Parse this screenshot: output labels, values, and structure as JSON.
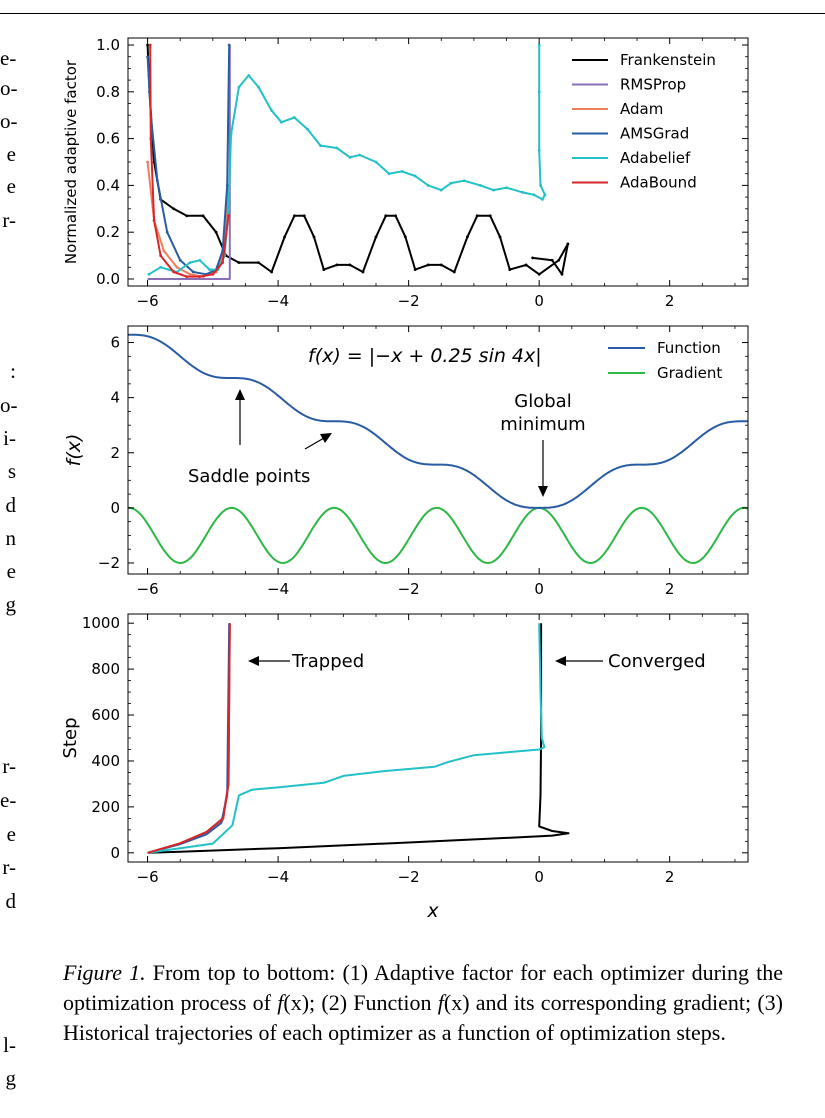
{
  "left_margin_fragments": {
    "top": [
      "e-",
      "o-",
      "o-",
      "e",
      "e",
      "r-"
    ],
    "middle": [
      ":",
      "o-",
      "i-",
      "s",
      "d",
      "n",
      "e",
      "g"
    ],
    "bottom": [
      "r-",
      "e-",
      "e",
      "r-",
      "d"
    ],
    "last": [
      "l-",
      "g"
    ]
  },
  "chart_data": [
    {
      "type": "line",
      "id": "adaptive-factor",
      "ylabel": "Normalized  adaptive  factor",
      "xlabel": "",
      "xlim": [
        -6.3,
        3.2
      ],
      "ylim": [
        -0.03,
        1.03
      ],
      "xticks": [
        -6,
        -4,
        -2,
        0,
        2
      ],
      "xtick_labels": [
        "−6",
        "−4",
        "−2",
        "0",
        "2"
      ],
      "yticks": [
        0.0,
        0.2,
        0.4,
        0.6,
        0.8,
        1.0
      ],
      "ytick_labels": [
        "0.0",
        "0.2",
        "0.4",
        "0.6",
        "0.8",
        "1.0"
      ],
      "legend_position": "top-right",
      "series": [
        {
          "name": "Frankenstein",
          "color": "#000000",
          "points": [
            [
              -6.0,
              1.0
            ],
            [
              -5.97,
              0.8
            ],
            [
              -5.9,
              0.5
            ],
            [
              -5.8,
              0.34
            ],
            [
              -5.6,
              0.3
            ],
            [
              -5.4,
              0.27
            ],
            [
              -5.15,
              0.27
            ],
            [
              -4.95,
              0.2
            ],
            [
              -4.8,
              0.1
            ],
            [
              -4.6,
              0.07
            ],
            [
              -4.3,
              0.07
            ],
            [
              -4.1,
              0.03
            ],
            [
              -3.9,
              0.18
            ],
            [
              -3.75,
              0.27
            ],
            [
              -3.6,
              0.27
            ],
            [
              -3.45,
              0.18
            ],
            [
              -3.3,
              0.04
            ],
            [
              -3.1,
              0.06
            ],
            [
              -2.9,
              0.06
            ],
            [
              -2.7,
              0.03
            ],
            [
              -2.5,
              0.18
            ],
            [
              -2.35,
              0.27
            ],
            [
              -2.2,
              0.27
            ],
            [
              -2.05,
              0.18
            ],
            [
              -1.9,
              0.04
            ],
            [
              -1.7,
              0.06
            ],
            [
              -1.5,
              0.06
            ],
            [
              -1.3,
              0.03
            ],
            [
              -1.1,
              0.18
            ],
            [
              -0.95,
              0.27
            ],
            [
              -0.75,
              0.27
            ],
            [
              -0.6,
              0.18
            ],
            [
              -0.45,
              0.04
            ],
            [
              -0.2,
              0.06
            ],
            [
              0.0,
              0.02
            ],
            [
              0.3,
              0.08
            ],
            [
              0.44,
              0.15
            ],
            [
              0.35,
              0.02
            ],
            [
              0.2,
              0.08
            ],
            [
              -0.1,
              0.09
            ]
          ]
        },
        {
          "name": "RMSProp",
          "color": "#8a6fb6",
          "points": [
            [
              -6.0,
              0.0
            ],
            [
              -4.74,
              0.0
            ],
            [
              -4.74,
              1.0
            ]
          ]
        },
        {
          "name": "Adam",
          "color": "#ef7d5c",
          "points": [
            [
              -6.0,
              0.5
            ],
            [
              -5.9,
              0.25
            ],
            [
              -5.75,
              0.12
            ],
            [
              -5.55,
              0.05
            ],
            [
              -5.35,
              0.02
            ],
            [
              -5.15,
              0.01
            ],
            [
              -4.95,
              0.03
            ],
            [
              -4.82,
              0.12
            ],
            [
              -4.76,
              0.4
            ]
          ]
        },
        {
          "name": "AMSGrad",
          "color": "#2a5ca3",
          "points": [
            [
              -6.0,
              0.95
            ],
            [
              -5.95,
              0.7
            ],
            [
              -5.85,
              0.42
            ],
            [
              -5.7,
              0.2
            ],
            [
              -5.5,
              0.08
            ],
            [
              -5.3,
              0.03
            ],
            [
              -5.1,
              0.02
            ],
            [
              -4.95,
              0.04
            ],
            [
              -4.85,
              0.12
            ],
            [
              -4.78,
              0.4
            ],
            [
              -4.75,
              1.0
            ]
          ]
        },
        {
          "name": "Adabelief",
          "color": "#22c1c7",
          "points": [
            [
              -5.98,
              0.02
            ],
            [
              -5.8,
              0.05
            ],
            [
              -5.55,
              0.03
            ],
            [
              -5.35,
              0.07
            ],
            [
              -5.2,
              0.08
            ],
            [
              -5.05,
              0.04
            ],
            [
              -4.92,
              0.04
            ],
            [
              -4.82,
              0.1
            ],
            [
              -4.76,
              0.3
            ],
            [
              -4.72,
              0.62
            ],
            [
              -4.6,
              0.82
            ],
            [
              -4.45,
              0.87
            ],
            [
              -4.3,
              0.82
            ],
            [
              -4.1,
              0.72
            ],
            [
              -3.95,
              0.67
            ],
            [
              -3.75,
              0.69
            ],
            [
              -3.55,
              0.64
            ],
            [
              -3.35,
              0.57
            ],
            [
              -3.1,
              0.56
            ],
            [
              -2.9,
              0.52
            ],
            [
              -2.75,
              0.53
            ],
            [
              -2.5,
              0.5
            ],
            [
              -2.3,
              0.45
            ],
            [
              -2.1,
              0.46
            ],
            [
              -1.9,
              0.44
            ],
            [
              -1.7,
              0.4
            ],
            [
              -1.5,
              0.38
            ],
            [
              -1.35,
              0.41
            ],
            [
              -1.15,
              0.42
            ],
            [
              -0.9,
              0.4
            ],
            [
              -0.7,
              0.38
            ],
            [
              -0.5,
              0.39
            ],
            [
              -0.25,
              0.37
            ],
            [
              -0.08,
              0.36
            ],
            [
              0.05,
              0.34
            ],
            [
              0.09,
              0.36
            ],
            [
              0.02,
              0.4
            ],
            [
              0.0,
              0.55
            ],
            [
              0.0,
              0.8
            ],
            [
              0.0,
              1.0
            ]
          ]
        },
        {
          "name": "AdaBound",
          "color": "#d8262a",
          "points": [
            [
              -5.96,
              1.0
            ],
            [
              -5.95,
              0.6
            ],
            [
              -5.9,
              0.25
            ],
            [
              -5.8,
              0.1
            ],
            [
              -5.6,
              0.03
            ],
            [
              -5.4,
              0.01
            ],
            [
              -5.2,
              0.01
            ],
            [
              -5.0,
              0.02
            ],
            [
              -4.85,
              0.07
            ],
            [
              -4.76,
              0.27
            ]
          ]
        }
      ]
    },
    {
      "type": "line",
      "id": "function-gradient",
      "ylabel": "f(x)",
      "xlabel": "",
      "xlim": [
        -6.3,
        3.2
      ],
      "ylim": [
        -2.4,
        6.6
      ],
      "xticks": [
        -6,
        -4,
        -2,
        0,
        2
      ],
      "xtick_labels": [
        "−6",
        "−4",
        "−2",
        "0",
        "2"
      ],
      "yticks": [
        -2,
        0,
        2,
        4,
        6
      ],
      "ytick_labels": [
        "−2",
        "0",
        "2",
        "4",
        "6"
      ],
      "legend_position": "top-right",
      "equation": "f(x) = |−x + 0.25 sin 4x|",
      "annotations": {
        "saddle": "Saddle points",
        "global_line1": "Global",
        "global_line2": "minimum"
      },
      "series": [
        {
          "name": "Function",
          "color": "#2a5ca3",
          "function": "abs(-x + 0.25*sin(4*x))"
        },
        {
          "name": "Gradient",
          "color": "#2db845",
          "function": "-1 + cos(4*x) (derivative of -x + 0.25 sin 4x)"
        }
      ]
    },
    {
      "type": "line",
      "id": "trajectories",
      "ylabel": "Step",
      "xlabel": "x",
      "xlim": [
        -6.3,
        3.2
      ],
      "ylim": [
        -40,
        1040
      ],
      "xticks": [
        -6,
        -4,
        -2,
        0,
        2
      ],
      "xtick_labels": [
        "−6",
        "−4",
        "−2",
        "0",
        "2"
      ],
      "yticks": [
        0,
        200,
        400,
        600,
        800,
        1000
      ],
      "ytick_labels": [
        "0",
        "200",
        "400",
        "600",
        "800",
        "1000"
      ],
      "annotations": {
        "trapped": "Trapped",
        "converged": "Converged"
      },
      "series": [
        {
          "name": "Frankenstein",
          "color": "#000000",
          "points": [
            [
              -6.0,
              0
            ],
            [
              -5.5,
              5
            ],
            [
              -4.0,
              20
            ],
            [
              -2.0,
              45
            ],
            [
              -0.5,
              65
            ],
            [
              0.2,
              75
            ],
            [
              0.45,
              85
            ],
            [
              0.2,
              95
            ],
            [
              0.0,
              115
            ],
            [
              0.02,
              250
            ],
            [
              0.03,
              500
            ],
            [
              0.03,
              1000
            ]
          ]
        },
        {
          "name": "RMSProp",
          "color": "#8a6fb6",
          "points": [
            [
              -6.0,
              0
            ],
            [
              -5.5,
              40
            ],
            [
              -5.1,
              90
            ],
            [
              -4.85,
              150
            ],
            [
              -4.76,
              300
            ],
            [
              -4.74,
              1000
            ]
          ]
        },
        {
          "name": "Adam",
          "color": "#ef7d5c",
          "points": [
            [
              -6.0,
              0
            ],
            [
              -5.5,
              40
            ],
            [
              -5.1,
              85
            ],
            [
              -4.85,
              140
            ],
            [
              -4.77,
              280
            ],
            [
              -4.74,
              1000
            ]
          ]
        },
        {
          "name": "AMSGrad",
          "color": "#2a5ca3",
          "points": [
            [
              -6.0,
              0
            ],
            [
              -5.5,
              38
            ],
            [
              -5.1,
              80
            ],
            [
              -4.87,
              130
            ],
            [
              -4.78,
              250
            ],
            [
              -4.75,
              1000
            ]
          ]
        },
        {
          "name": "Adabelief",
          "color": "#22c1c7",
          "points": [
            [
              -6.0,
              0
            ],
            [
              -5.5,
              20
            ],
            [
              -5.0,
              40
            ],
            [
              -4.7,
              120
            ],
            [
              -4.6,
              250
            ],
            [
              -4.4,
              275
            ],
            [
              -4.0,
              285
            ],
            [
              -3.3,
              305
            ],
            [
              -3.0,
              335
            ],
            [
              -2.4,
              355
            ],
            [
              -1.6,
              375
            ],
            [
              -1.4,
              395
            ],
            [
              -1.0,
              425
            ],
            [
              -0.4,
              440
            ],
            [
              0.0,
              450
            ],
            [
              0.08,
              460
            ],
            [
              0.04,
              500
            ],
            [
              0.02,
              700
            ],
            [
              0.0,
              1000
            ]
          ]
        },
        {
          "name": "AdaBound",
          "color": "#d8262a",
          "points": [
            [
              -6.0,
              0
            ],
            [
              -5.5,
              42
            ],
            [
              -5.1,
              90
            ],
            [
              -4.84,
              150
            ],
            [
              -4.76,
              300
            ],
            [
              -4.74,
              1000
            ]
          ]
        }
      ]
    }
  ],
  "caption": {
    "lead": "Figure 1.",
    "part1": " From top to bottom: (1) Adaptive factor for each optimizer during the optimization process of ",
    "fx1": "f",
    "part2": "(x); (2) Function ",
    "fx2": "f",
    "part3": "(x) and its corresponding gradient; (3) Historical trajectories of each optimizer as a function of optimization steps."
  }
}
